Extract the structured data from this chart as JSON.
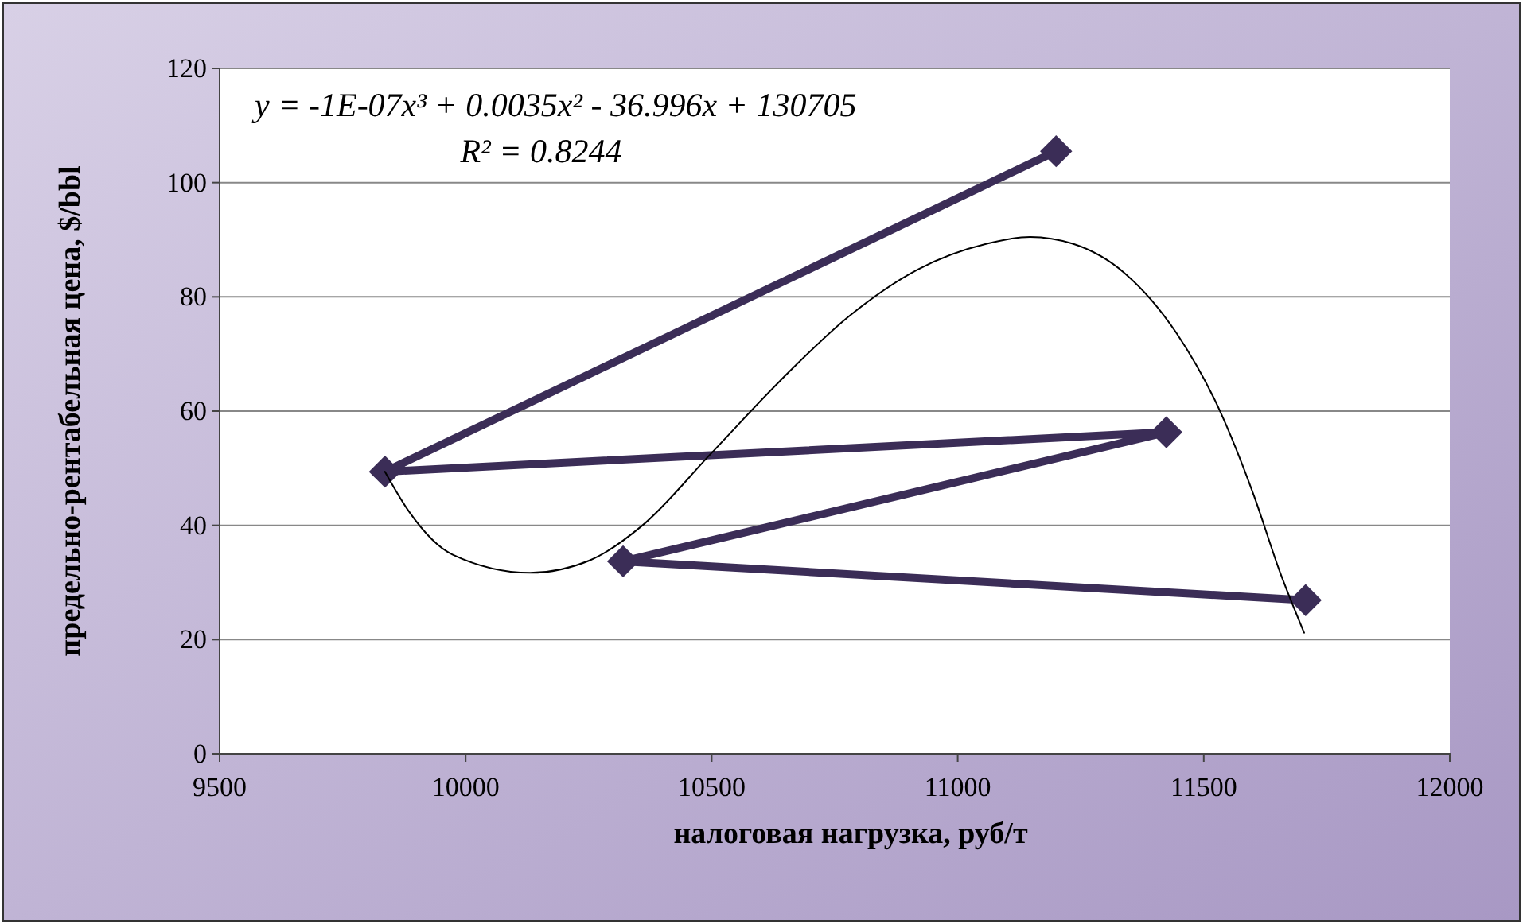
{
  "chart_data": {
    "type": "line",
    "xlabel": "налоговая нагрузка, руб/т",
    "ylabel": "предельно-рентабельная цена, $/bbl",
    "xlim": [
      9500,
      12000
    ],
    "xticks": [
      9500,
      10000,
      10500,
      11000,
      11500,
      12000
    ],
    "ylim": [
      0,
      120
    ],
    "yticks": [
      0,
      20,
      40,
      60,
      80,
      100,
      120
    ],
    "grid": "y",
    "annotations": [
      "y = -1E-07x³ + 0.0035x² - 36.996x + 130705",
      "R² = 0.8244"
    ],
    "series": [
      {
        "type": "line",
        "color": "#3b2d57",
        "marker": "diamond",
        "line_style": "solid",
        "x": [
          11200,
          9836,
          11424,
          10320,
          11707
        ],
        "values": [
          105.5,
          49.4,
          56.3,
          33.7,
          26.9
        ]
      },
      {
        "type": "line",
        "color": "#000000",
        "marker": "none",
        "line_style": "solid",
        "x": [
          9836,
          9885,
          9973,
          10131,
          10253,
          10358,
          10499,
          10639,
          10779,
          10919,
          11059,
          11147,
          11234,
          11340,
          11445,
          11532,
          11602,
          11655,
          11704
        ],
        "values": [
          49.4,
          42.4,
          34.9,
          31.7,
          33.9,
          39.9,
          52.6,
          65.3,
          76.6,
          84.8,
          89.3,
          90.5,
          89.3,
          84.1,
          73.6,
          60.2,
          45.2,
          31.8,
          21.2
        ]
      }
    ]
  }
}
